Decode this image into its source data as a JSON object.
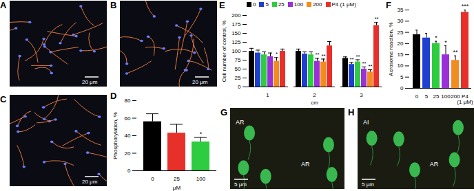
{
  "chart_data": [
    {
      "type": "bar",
      "panel_label": "D",
      "categories": [
        "0",
        "25",
        "100"
      ],
      "values": [
        56,
        43,
        33
      ],
      "errors": [
        9,
        10,
        5
      ],
      "colors": [
        "#000000",
        "#e8302a",
        "#2ecc40"
      ],
      "annotations": [
        null,
        null,
        "*"
      ],
      "xlabel": "μM",
      "ylabel": "Phosphorylation, %",
      "ylim": [
        0,
        80
      ],
      "yticks": [
        0,
        20,
        40,
        60,
        80
      ],
      "grid": false
    },
    {
      "type": "bar",
      "panel_label": "E",
      "categories": [
        "1",
        "2",
        "3"
      ],
      "xlabel": "cm",
      "ylabel": "Cell number of control, %",
      "ylim": [
        0,
        200
      ],
      "yticks": [
        0,
        25,
        50,
        75,
        100,
        125,
        150,
        175,
        200
      ],
      "grid": false,
      "legend": "top",
      "series": [
        {
          "name": "0",
          "color": "#000000",
          "values": [
            100,
            100,
            80
          ],
          "errors": [
            8,
            6,
            4
          ],
          "annotations": [
            null,
            null,
            null
          ]
        },
        {
          "name": "5",
          "color": "#1f3fd1",
          "values": [
            95,
            92,
            63
          ],
          "errors": [
            8,
            6,
            5
          ],
          "annotations": [
            null,
            null,
            "**"
          ]
        },
        {
          "name": "25",
          "color": "#2ecc40",
          "values": [
            90,
            90,
            70
          ],
          "errors": [
            8,
            8,
            6
          ],
          "annotations": [
            null,
            null,
            "**"
          ]
        },
        {
          "name": "100",
          "color": "#9b30d9",
          "values": [
            85,
            72,
            50
          ],
          "errors": [
            10,
            8,
            6
          ],
          "annotations": [
            null,
            "**",
            "**"
          ]
        },
        {
          "name": "200",
          "color": "#f28c1e",
          "values": [
            72,
            70,
            42
          ],
          "errors": [
            10,
            8,
            6
          ],
          "annotations": [
            "*",
            "**",
            "**"
          ]
        },
        {
          "name": "P4 (1 μM)",
          "color": "#e8302a",
          "values": [
            100,
            115,
            172
          ],
          "errors": [
            6,
            12,
            8
          ],
          "annotations": [
            null,
            null,
            "**"
          ]
        }
      ]
    },
    {
      "type": "bar",
      "panel_label": "F",
      "categories": [
        "0",
        "5",
        "25",
        "100",
        "200",
        "P4 (1 μM)"
      ],
      "values": [
        24,
        22.5,
        20,
        15,
        12.5,
        34
      ],
      "errors": [
        2,
        2,
        1,
        4,
        2,
        1
      ],
      "colors": [
        "#000000",
        "#1f3fd1",
        "#2ecc40",
        "#9b30d9",
        "#f28c1e",
        "#e8302a"
      ],
      "annotations": [
        null,
        null,
        "*",
        "*",
        "**",
        "***"
      ],
      "ylabel": "Acrosome reaction, %",
      "ylim": [
        0,
        35
      ],
      "yticks": [
        0,
        5,
        10,
        15,
        20,
        25,
        30,
        35
      ],
      "grid": false
    }
  ],
  "images": [
    {
      "panel_label": "A",
      "scale_bar": "20 μm"
    },
    {
      "panel_label": "B",
      "scale_bar": "20 μm"
    },
    {
      "panel_label": "C",
      "scale_bar": "20 μm"
    },
    {
      "panel_label": "G",
      "scale_bar": "5 μm",
      "labels": [
        "AR",
        "AR"
      ]
    },
    {
      "panel_label": "H",
      "scale_bar": "5 μm",
      "labels": [
        "AI",
        "AR"
      ]
    }
  ]
}
